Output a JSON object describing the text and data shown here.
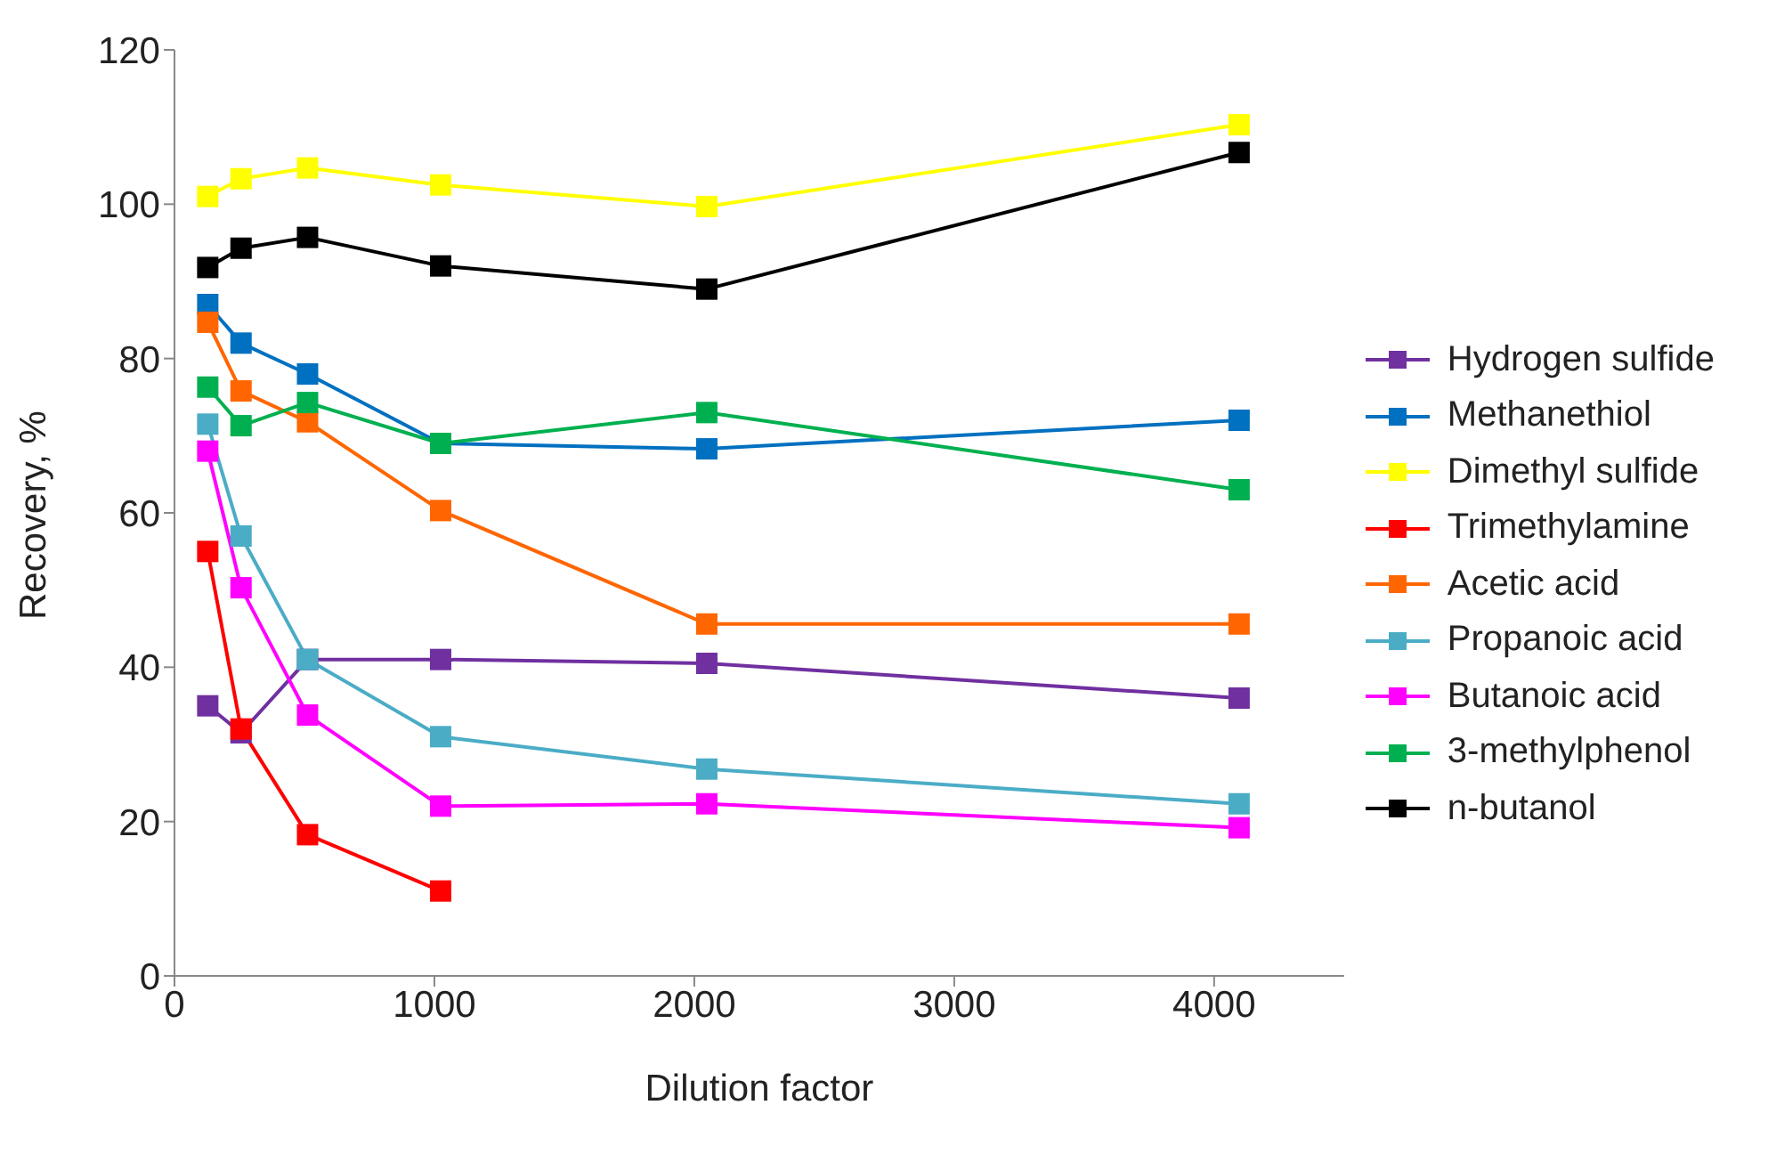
{
  "chart_data": {
    "type": "line",
    "xlabel": "Dilution factor",
    "ylabel": "Recovery, %",
    "x": [
      128,
      256,
      512,
      1024,
      2048,
      4096
    ],
    "xlim": [
      0,
      4500
    ],
    "xticks": [
      0,
      1000,
      2000,
      3000,
      4000
    ],
    "ylim": [
      0,
      120
    ],
    "yticks": [
      0,
      20,
      40,
      60,
      80,
      100,
      120
    ],
    "grid": false,
    "legend": "right",
    "marker": "square",
    "line_style": "solid",
    "series": [
      {
        "name": "Hydrogen sulfide",
        "color": "#7030a0",
        "values": [
          35,
          31.5,
          41,
          41,
          40.5,
          36
        ]
      },
      {
        "name": "Methanethiol",
        "color": "#0070c0",
        "values": [
          87,
          82,
          78,
          69,
          68.3,
          72
        ]
      },
      {
        "name": "Dimethyl sulfide",
        "color": "#ffff00",
        "values": [
          101,
          103.3,
          104.7,
          102.5,
          99.7,
          110.3
        ]
      },
      {
        "name": "Trimethylamine",
        "color": "#ff0000",
        "values": [
          55,
          32,
          18.3,
          11,
          null,
          null
        ]
      },
      {
        "name": "Acetic acid",
        "color": "#ff6600",
        "values": [
          84.7,
          75.8,
          71.8,
          60.3,
          45.6,
          45.6
        ]
      },
      {
        "name": "Propanoic acid",
        "color": "#4bacc6",
        "values": [
          71.5,
          57,
          41,
          31,
          26.8,
          22.3
        ]
      },
      {
        "name": "Butanoic acid",
        "color": "#ff00ff",
        "values": [
          68,
          50.3,
          33.8,
          22,
          22.3,
          19.2
        ]
      },
      {
        "name": "3-methylphenol",
        "color": "#00b050",
        "values": [
          76.3,
          71.3,
          74.3,
          69,
          73,
          63
        ]
      },
      {
        "name": "n-butanol",
        "color": "#000000",
        "values": [
          91.8,
          94.3,
          95.7,
          92,
          89,
          106.7
        ]
      }
    ]
  }
}
